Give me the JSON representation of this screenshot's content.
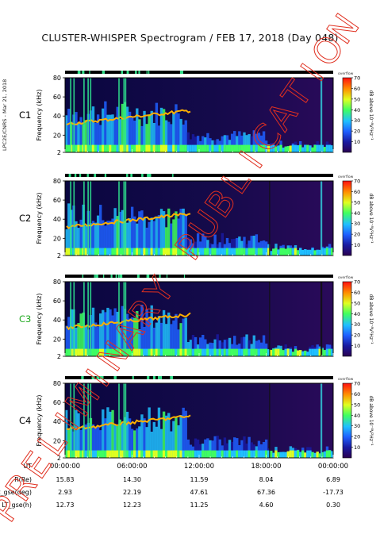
{
  "title": "CLUSTER-WHISPER Spectrogram / FEB 17, 2018 (Day 048)",
  "credit": "LPC2E/CNRS - Mar 21, 2018",
  "watermark": "PRELIMINARY PUBLICATION",
  "colors": {
    "spacecraft_c1": "#000000",
    "spacecraft_c2": "#000000",
    "spacecraft_c3": "#22aa22",
    "spacecraft_c4": "#000000",
    "watermark": "#e03020",
    "mode_bar_dark": "#000000",
    "mode_bar_light": "#33dd88"
  },
  "chart_data": {
    "type": "heatmap",
    "x_ticks": [
      "00:00:00",
      "06:00:00",
      "12:00:00",
      "18:00:00",
      "00:00:00"
    ],
    "ylabel": "Frequency (kHz)",
    "ylim": [
      2,
      80
    ],
    "y_ticks": [
      "2",
      "20",
      "40",
      "60",
      "80"
    ],
    "colorbar": {
      "label": "dB above 10⁻⁸V²Hz⁻¹",
      "range": [
        0,
        70
      ],
      "ticks": [
        "10",
        "20",
        "30",
        "40",
        "50",
        "60",
        "70"
      ],
      "top_label": "overflow"
    },
    "panels": [
      {
        "name": "C1"
      },
      {
        "name": "C2"
      },
      {
        "name": "C3"
      },
      {
        "name": "C4"
      }
    ],
    "ephemeris": {
      "labels": [
        "UT",
        "R(Re)",
        "Lat_gse(deg)",
        "LT_gse(h)"
      ],
      "rows": [
        [
          "15.83",
          "14.30",
          "11.59",
          "8.04",
          "6.89"
        ],
        [
          "2.93",
          "22.19",
          "47.61",
          "67.36",
          "-17.73"
        ],
        [
          "12.73",
          "12.23",
          "11.25",
          "4.60",
          "0.30"
        ]
      ]
    }
  }
}
